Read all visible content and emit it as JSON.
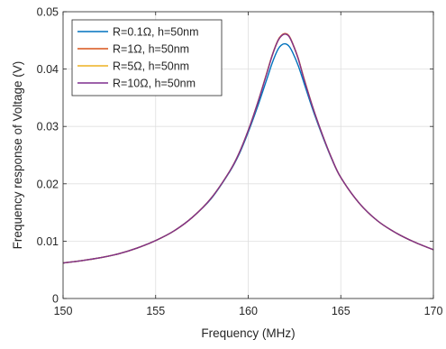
{
  "chart_data": {
    "type": "line",
    "title": "",
    "xlabel": "Frequency (MHz)",
    "ylabel": "Frequency response of Voltage (V)",
    "xlim": [
      150,
      170
    ],
    "ylim": [
      0,
      0.05
    ],
    "xticks": [
      150,
      155,
      160,
      165,
      170
    ],
    "yticks": [
      0,
      0.01,
      0.02,
      0.03,
      0.04,
      0.05
    ],
    "xtick_labels": [
      "150",
      "155",
      "160",
      "165",
      "170"
    ],
    "ytick_labels": [
      "0",
      "0.01",
      "0.02",
      "0.03",
      "0.04",
      "0.05"
    ],
    "grid": true,
    "legend_position": "top-left",
    "x": [
      150,
      151,
      152,
      153,
      154,
      155,
      156,
      157,
      158,
      159,
      159.5,
      160,
      160.5,
      161,
      161.3,
      161.6,
      161.8,
      162,
      162.2,
      162.4,
      162.7,
      163,
      163.5,
      164,
      164.5,
      165,
      166,
      167,
      168,
      169,
      170
    ],
    "series": [
      {
        "name": "R=0.1Ω, h=50nm",
        "color": "#0072BD",
        "values": [
          0.0062,
          0.0066,
          0.0071,
          0.0078,
          0.0088,
          0.0101,
          0.0118,
          0.0142,
          0.0174,
          0.0221,
          0.0251,
          0.029,
          0.0334,
          0.0382,
          0.0411,
          0.0434,
          0.0442,
          0.0444,
          0.044,
          0.0429,
          0.0406,
          0.0377,
          0.0328,
          0.0284,
          0.0244,
          0.0211,
          0.0166,
          0.0135,
          0.0114,
          0.0098,
          0.0085
        ]
      },
      {
        "name": "R=1Ω, h=50nm",
        "color": "#D95319",
        "values": [
          0.0062,
          0.0066,
          0.0071,
          0.0078,
          0.0088,
          0.0101,
          0.0118,
          0.0142,
          0.0175,
          0.0222,
          0.0253,
          0.0293,
          0.034,
          0.0393,
          0.0425,
          0.045,
          0.0459,
          0.0462,
          0.0458,
          0.0445,
          0.0419,
          0.0385,
          0.0332,
          0.0286,
          0.0245,
          0.0211,
          0.0166,
          0.0135,
          0.0114,
          0.0098,
          0.0085
        ]
      },
      {
        "name": "R=5Ω, h=50nm",
        "color": "#EDB120",
        "values": [
          0.0062,
          0.0066,
          0.0071,
          0.0078,
          0.0088,
          0.0101,
          0.0118,
          0.0142,
          0.0175,
          0.0222,
          0.0253,
          0.0293,
          0.034,
          0.0393,
          0.0424,
          0.0449,
          0.0458,
          0.0461,
          0.0457,
          0.0444,
          0.0418,
          0.0385,
          0.0332,
          0.0286,
          0.0245,
          0.0211,
          0.0166,
          0.0135,
          0.0114,
          0.0098,
          0.0085
        ]
      },
      {
        "name": "R=10Ω, h=50nm",
        "color": "#7E2F8E",
        "values": [
          0.0062,
          0.0066,
          0.0071,
          0.0078,
          0.0088,
          0.0101,
          0.0118,
          0.0142,
          0.0175,
          0.0222,
          0.0253,
          0.0293,
          0.034,
          0.0392,
          0.0424,
          0.0449,
          0.0458,
          0.0461,
          0.0457,
          0.0444,
          0.0418,
          0.0384,
          0.0332,
          0.0286,
          0.0245,
          0.0211,
          0.0166,
          0.0135,
          0.0114,
          0.0098,
          0.0085
        ]
      }
    ]
  }
}
